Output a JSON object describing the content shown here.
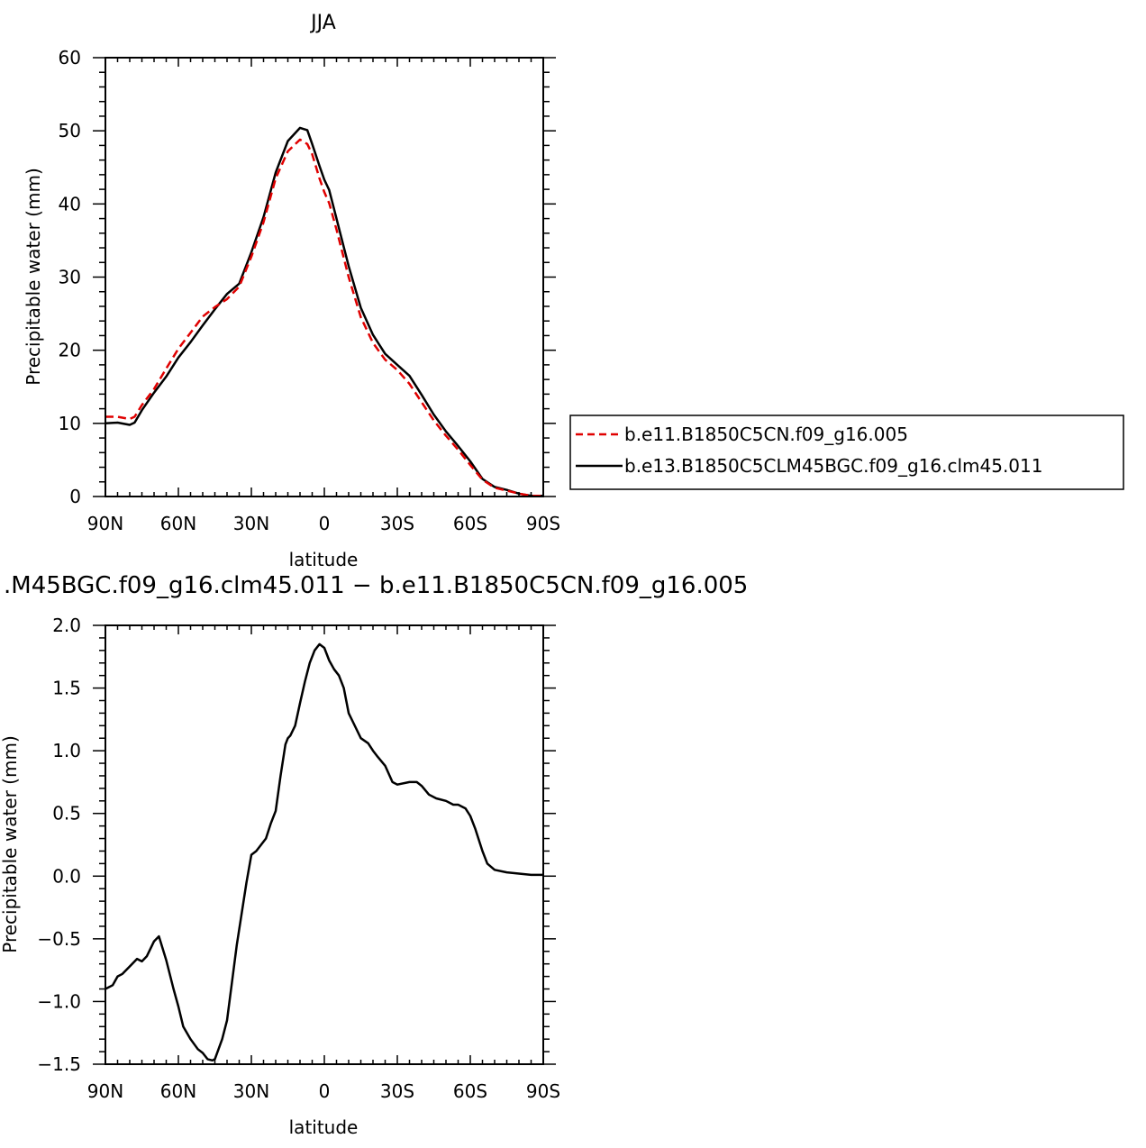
{
  "chart_data": [
    {
      "type": "line",
      "title": "JJA",
      "xlabel": "latitude",
      "ylabel": "Precipitable water (mm)",
      "xlim": [
        90,
        -90
      ],
      "ylim": [
        0,
        60
      ],
      "x_ticks": [
        90,
        60,
        30,
        0,
        -30,
        -60,
        -90
      ],
      "x_tick_labels": [
        "90N",
        "60N",
        "30N",
        "0",
        "30S",
        "60S",
        "90S"
      ],
      "y_ticks": [
        0,
        10,
        20,
        30,
        40,
        50,
        60
      ],
      "y_tick_labels": [
        "0",
        "10",
        "20",
        "30",
        "40",
        "50",
        "60"
      ],
      "legend_position": "right",
      "series": [
        {
          "name": "b.e11.B1850C5CN.f09_g16.005",
          "color": "#e00000",
          "dash": true,
          "x": [
            90,
            85,
            80,
            78,
            75,
            70,
            65,
            60,
            55,
            50,
            45,
            40,
            35,
            30,
            25,
            20,
            15,
            10,
            7,
            5,
            2,
            0,
            -2,
            -5,
            -10,
            -15,
            -20,
            -25,
            -30,
            -35,
            -40,
            -45,
            -50,
            -55,
            -60,
            -65,
            -70,
            -75,
            -80,
            -85,
            -90
          ],
          "y": [
            10.9,
            10.9,
            10.6,
            10.9,
            12.5,
            14.7,
            17.5,
            20.2,
            22.4,
            24.6,
            25.9,
            27.0,
            28.7,
            32.8,
            37.5,
            43.5,
            47.2,
            48.8,
            48.2,
            46.8,
            43.5,
            41.6,
            40.1,
            36.5,
            30.0,
            24.5,
            21.0,
            18.7,
            17.3,
            15.4,
            12.9,
            10.4,
            8.3,
            6.4,
            4.3,
            2.3,
            1.2,
            0.8,
            0.4,
            0.1,
            0.1
          ]
        },
        {
          "name": "b.e13.B1850C5CLM45BGC.f09_g16.clm45.011",
          "color": "#000000",
          "dash": false,
          "x": [
            90,
            85,
            80,
            78,
            75,
            70,
            65,
            60,
            55,
            50,
            45,
            40,
            35,
            30,
            25,
            20,
            15,
            10,
            7,
            5,
            2,
            0,
            -2,
            -5,
            -10,
            -15,
            -20,
            -25,
            -30,
            -35,
            -40,
            -45,
            -50,
            -55,
            -60,
            -65,
            -70,
            -75,
            -80,
            -85,
            -90
          ],
          "y": [
            10.0,
            10.1,
            9.8,
            10.1,
            11.8,
            14.2,
            16.4,
            19.0,
            21.1,
            23.4,
            25.6,
            27.7,
            29.1,
            33.4,
            38.2,
            44.3,
            48.6,
            50.4,
            50.1,
            48.2,
            45.2,
            43.3,
            41.9,
            38.0,
            31.5,
            25.8,
            22.1,
            19.5,
            18.0,
            16.5,
            13.9,
            11.2,
            8.9,
            6.9,
            4.8,
            2.4,
            1.3,
            0.9,
            0.4,
            0.1,
            0.1
          ]
        }
      ]
    },
    {
      "type": "line",
      "title": ".M45BGC.f09_g16.clm45.011 − b.e11.B1850C5CN.f09_g16.005",
      "xlabel": "latitude",
      "ylabel": "Precipitable water (mm)",
      "xlim": [
        90,
        -90
      ],
      "ylim": [
        -1.5,
        2.0
      ],
      "x_ticks": [
        90,
        60,
        30,
        0,
        -30,
        -60,
        -90
      ],
      "x_tick_labels": [
        "90N",
        "60N",
        "30N",
        "0",
        "30S",
        "60S",
        "90S"
      ],
      "y_ticks": [
        -1.5,
        -1.0,
        -0.5,
        0.0,
        0.5,
        1.0,
        1.5,
        2.0
      ],
      "y_tick_labels": [
        "−1.5",
        "−1.0",
        "−0.5",
        "0.0",
        "0.5",
        "1.0",
        "1.5",
        "2.0"
      ],
      "series": [
        {
          "color": "#000000",
          "dash": false,
          "x": [
            90,
            87,
            85,
            83,
            80,
            77,
            75,
            73,
            70,
            68,
            65,
            62,
            60,
            58,
            55,
            52,
            50,
            48,
            46,
            45,
            42,
            40,
            38,
            36,
            34,
            32,
            30,
            28,
            26,
            24,
            22,
            20,
            18,
            16,
            15,
            14,
            12,
            10,
            8,
            6,
            4,
            2,
            0,
            -2,
            -4,
            -6,
            -8,
            -10,
            -12,
            -15,
            -18,
            -20,
            -22,
            -25,
            -28,
            -30,
            -35,
            -38,
            -40,
            -43,
            -46,
            -50,
            -53,
            -55,
            -58,
            -60,
            -62,
            -65,
            -67,
            -70,
            -75,
            -80,
            -85,
            -88,
            -90
          ],
          "y": [
            -0.9,
            -0.87,
            -0.8,
            -0.78,
            -0.72,
            -0.66,
            -0.68,
            -0.64,
            -0.52,
            -0.48,
            -0.67,
            -0.9,
            -1.04,
            -1.2,
            -1.3,
            -1.38,
            -1.41,
            -1.46,
            -1.47,
            -1.46,
            -1.3,
            -1.15,
            -0.85,
            -0.55,
            -0.3,
            -0.05,
            0.17,
            0.2,
            0.25,
            0.3,
            0.42,
            0.52,
            0.8,
            1.05,
            1.1,
            1.12,
            1.2,
            1.38,
            1.55,
            1.7,
            1.8,
            1.85,
            1.82,
            1.72,
            1.65,
            1.6,
            1.5,
            1.3,
            1.22,
            1.1,
            1.06,
            1.0,
            0.95,
            0.88,
            0.75,
            0.73,
            0.75,
            0.75,
            0.72,
            0.65,
            0.62,
            0.6,
            0.57,
            0.57,
            0.54,
            0.48,
            0.38,
            0.2,
            0.1,
            0.05,
            0.03,
            0.02,
            0.01,
            0.01,
            0.01
          ]
        }
      ]
    }
  ]
}
